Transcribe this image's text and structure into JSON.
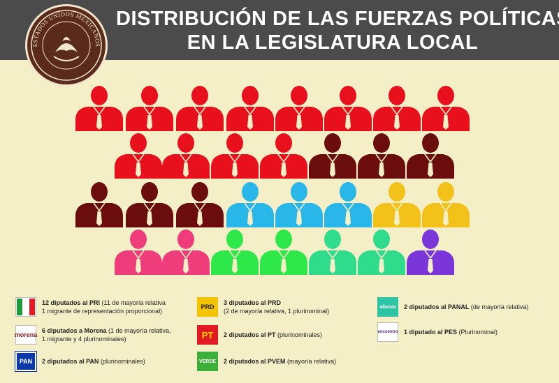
{
  "header": {
    "title_line1": "DISTRIBUCIÓN DE LAS FUERZAS POLÍTICAS",
    "title_line2": "EN LA LEGISLATURA LOCAL"
  },
  "seal": {
    "text": "ESTADOS UNIDOS MEXICANOS"
  },
  "parties": [
    {
      "key": "pri",
      "color": "#e8101c",
      "count": 12
    },
    {
      "key": "morena",
      "color": "#6b0d0d",
      "count": 6
    },
    {
      "key": "prd",
      "color": "#29b6e8",
      "count": 3
    },
    {
      "key": "pt",
      "color": "#f2c21a",
      "count": 2
    },
    {
      "key": "pan",
      "color": "#ee3d7a",
      "count": 2
    },
    {
      "key": "pvem",
      "color": "#2ee84a",
      "count": 2
    },
    {
      "key": "panal",
      "color": "#2edc8c",
      "count": 2
    },
    {
      "key": "pes",
      "color": "#7a36d8",
      "count": 1
    }
  ],
  "legend": {
    "pri": {
      "logo": "PRI",
      "line1_bold": "12 diputados al PRI",
      "line1": " (11 de mayoría relativa",
      "line2": "1 migrante de representación proporcional)"
    },
    "morena": {
      "logo": "morena",
      "line1_bold": "6 diputados a Morena",
      "line1": " (1 de mayoría relativa,",
      "line2": "1 migrante y 4 plurinominales)"
    },
    "pan": {
      "logo": "PAN",
      "line1_bold": "2 diputados al PAN",
      "line1": " (plurinominales)",
      "line2": ""
    },
    "prd": {
      "logo": "PRD",
      "line1_bold": "3 diputados al PRD",
      "line1": "",
      "line2": "(2 de mayoría relativa, 1 plurinominal)"
    },
    "pt": {
      "logo": "PT",
      "line1_bold": "2 diputados al PT",
      "line1": " (plurinominales)",
      "line2": ""
    },
    "pvem": {
      "logo": "VERDE",
      "line1_bold": "2 diputados al PVEM",
      "line1": " (mayoría relativa)",
      "line2": ""
    },
    "panal": {
      "logo": "alianza",
      "line1_bold": "2 diputados al PANAL",
      "line1": " (de mayoría relativa)",
      "line2": ""
    },
    "pes": {
      "logo": "encuentro",
      "line1_bold": "1 diputado al PES",
      "line1": " (Plurinominal)",
      "line2": ""
    }
  }
}
